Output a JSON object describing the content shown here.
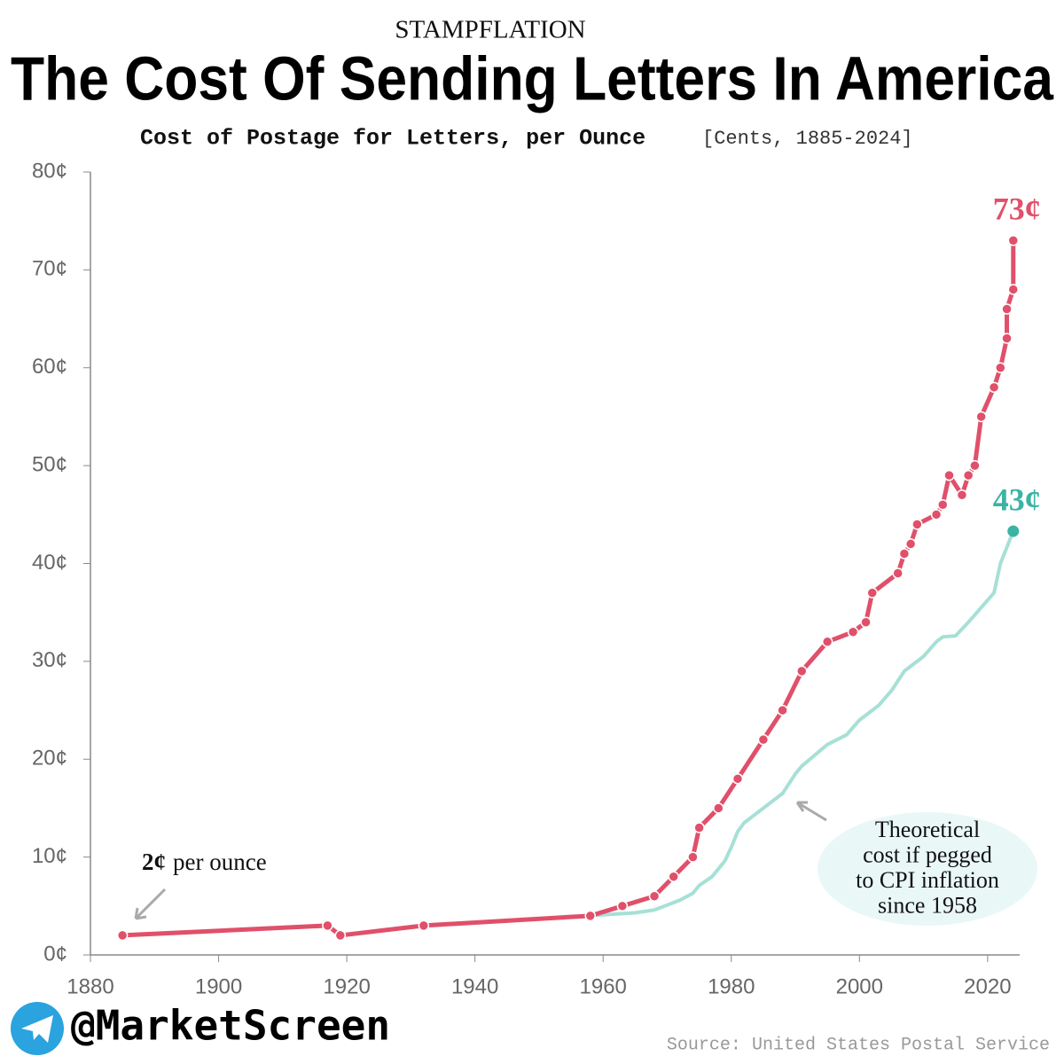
{
  "chart_data": {
    "type": "line",
    "kicker": "STAMPFLATION",
    "title": "The Cost Of Sending Letters In America",
    "subtitle": "Cost of Postage for Letters, per Ounce",
    "subtitle_units": "[Cents, 1885-2024]",
    "xlim": [
      1880,
      2025
    ],
    "xticks": [
      1880,
      1900,
      1920,
      1940,
      1960,
      1980,
      2000,
      2020
    ],
    "ylim": [
      0,
      80
    ],
    "yticks": [
      {
        "value": 0,
        "label": "0¢"
      },
      {
        "value": 10,
        "label": "10¢"
      },
      {
        "value": 20,
        "label": "20¢"
      },
      {
        "value": 30,
        "label": "30¢"
      },
      {
        "value": 40,
        "label": "40¢"
      },
      {
        "value": 50,
        "label": "50¢"
      },
      {
        "value": 60,
        "label": "60¢"
      },
      {
        "value": 70,
        "label": "70¢"
      },
      {
        "value": 80,
        "label": "80¢"
      }
    ],
    "grid": false,
    "series": [
      {
        "name": "Postage",
        "color": "#e0506a",
        "end_label": "73¢",
        "x": [
          1885,
          1917,
          1919,
          1932,
          1958,
          1963,
          1968,
          1971,
          1974,
          1975,
          1978,
          1981,
          1985,
          1988,
          1991,
          1995,
          1999,
          2001,
          2002,
          2006,
          2007,
          2008,
          2009,
          2012,
          2013,
          2014,
          2016,
          2017,
          2018,
          2019,
          2021,
          2022,
          2023,
          2023,
          2024,
          2024
        ],
        "values": [
          2,
          3,
          2,
          3,
          4,
          5,
          6,
          8,
          10,
          13,
          15,
          18,
          22,
          25,
          29,
          32,
          33,
          34,
          37,
          39,
          41,
          42,
          44,
          45,
          46,
          49,
          47,
          49,
          50,
          55,
          58,
          60,
          63,
          66,
          68,
          73
        ]
      },
      {
        "name": "CPI-pegged cost",
        "color": "#a6e0d6",
        "end_color": "#3bb3a4",
        "end_label": "43¢",
        "x": [
          1958,
          1960,
          1965,
          1968,
          1970,
          1972,
          1974,
          1975,
          1977,
          1979,
          1980,
          1981,
          1982,
          1985,
          1988,
          1990,
          1991,
          1995,
          1998,
          2000,
          2003,
          2005,
          2007,
          2008,
          2010,
          2012,
          2013,
          2015,
          2017,
          2019,
          2021,
          2022,
          2024
        ],
        "values": [
          4,
          4.1,
          4.3,
          4.6,
          5.1,
          5.6,
          6.3,
          7.1,
          8,
          9.6,
          11,
          12.6,
          13.5,
          15,
          16.5,
          18.5,
          19.3,
          21.5,
          22.5,
          24,
          25.5,
          27,
          29,
          29.5,
          30.5,
          32,
          32.5,
          32.6,
          34,
          35.5,
          37,
          40,
          43.3
        ]
      }
    ],
    "annotations": [
      {
        "text_bold": "2¢",
        "text": "per ounce"
      },
      {
        "lines": [
          "Theoretical",
          "cost if pegged",
          "to CPI inflation",
          "since 1958"
        ]
      }
    ],
    "handle": "@MarketScreen",
    "source": "Source: United States Postal Service"
  }
}
